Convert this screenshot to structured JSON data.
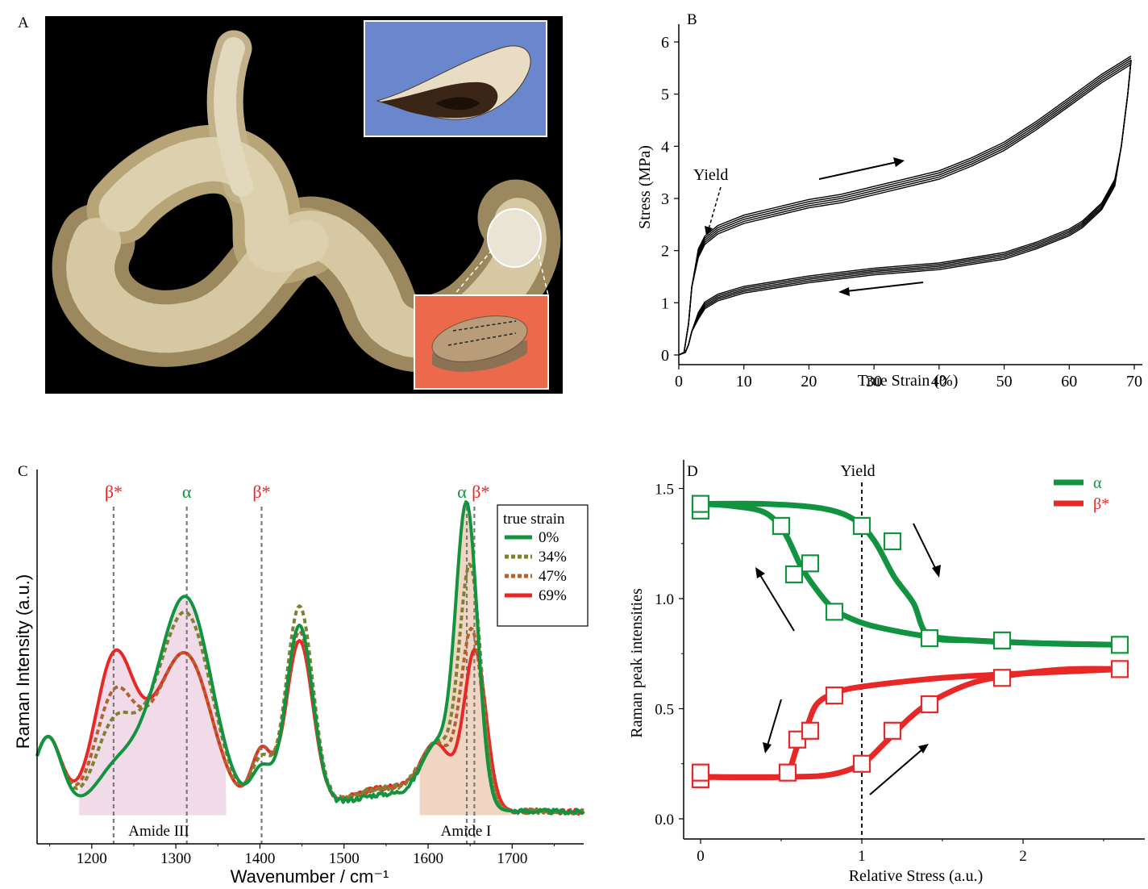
{
  "panels": {
    "A": {
      "label": "A"
    },
    "B": {
      "label": "B"
    },
    "C": {
      "label": "C"
    },
    "D": {
      "label": "D"
    }
  },
  "colors": {
    "alpha": "#11933f",
    "beta": "#e82727",
    "s34": "#7e8132",
    "s47": "#b0632d",
    "photo_bg": "#000000",
    "inset_blue": "#6a86cc",
    "inset_orange": "#ec6a4b"
  },
  "chart_data": [
    {
      "panel": "B",
      "type": "line",
      "xlabel": "True Strain (%)",
      "ylabel": "Stress (MPa)",
      "xlim": [
        0,
        70
      ],
      "ylim": [
        -0.2,
        6.5
      ],
      "xticks": [
        0,
        10,
        20,
        30,
        40,
        50,
        60,
        70
      ],
      "yticks": [
        0,
        1,
        2,
        3,
        4,
        5,
        6
      ],
      "annotations": {
        "yield": "Yield"
      },
      "series": [
        {
          "loading": [
            [
              0,
              0
            ],
            [
              0.8,
              0.05
            ],
            [
              1.5,
              0.6
            ],
            [
              2,
              1.3
            ],
            [
              3,
              1.95
            ],
            [
              4,
              2.2
            ],
            [
              6,
              2.4
            ],
            [
              10,
              2.6
            ],
            [
              15,
              2.75
            ],
            [
              20,
              2.9
            ],
            [
              25,
              3.0
            ],
            [
              30,
              3.15
            ],
            [
              35,
              3.3
            ],
            [
              40,
              3.45
            ],
            [
              45,
              3.7
            ],
            [
              50,
              4.0
            ],
            [
              55,
              4.4
            ],
            [
              60,
              4.85
            ],
            [
              65,
              5.3
            ],
            [
              69.5,
              5.65
            ]
          ],
          "unloading": [
            [
              69.5,
              5.65
            ],
            [
              69,
              5.0
            ],
            [
              68,
              4.0
            ],
            [
              67,
              3.3
            ],
            [
              65,
              2.85
            ],
            [
              62,
              2.5
            ],
            [
              60,
              2.35
            ],
            [
              55,
              2.1
            ],
            [
              50,
              1.9
            ],
            [
              45,
              1.8
            ],
            [
              40,
              1.7
            ],
            [
              30,
              1.6
            ],
            [
              20,
              1.45
            ],
            [
              15,
              1.35
            ],
            [
              10,
              1.25
            ],
            [
              6,
              1.1
            ],
            [
              4,
              0.95
            ],
            [
              3,
              0.75
            ],
            [
              2,
              0.45
            ],
            [
              1.5,
              0.2
            ],
            [
              1,
              0.05
            ],
            [
              0,
              0
            ]
          ]
        }
      ]
    },
    {
      "panel": "C",
      "type": "line",
      "xlabel": "Wavenumber / cm⁻¹",
      "ylabel": "Raman Intensity (a.u.)",
      "xlim": [
        1135,
        1785
      ],
      "xticks": [
        1200,
        1300,
        1400,
        1500,
        1600,
        1700
      ],
      "bands": [
        {
          "label": "Amide III",
          "range": [
            1185,
            1360
          ]
        },
        {
          "label": "Amide I",
          "range": [
            1590,
            1700
          ]
        }
      ],
      "peak_markers": [
        {
          "label": "β*",
          "x": 1226
        },
        {
          "label": "α",
          "x": 1313
        },
        {
          "label": "β*",
          "x": 1402
        },
        {
          "label": "α",
          "x": 1646
        },
        {
          "label": "β*",
          "x": 1655
        }
      ],
      "legend": {
        "title": "true strain",
        "entries": [
          "0%",
          "34%",
          "47%",
          "69%"
        ]
      },
      "series": [
        {
          "name": "0%",
          "peaks": [
            [
              1148,
              0.22
            ],
            [
              1226,
              0.1
            ],
            [
              1313,
              0.65
            ],
            [
              1402,
              0.12
            ],
            [
              1447,
              0.58
            ],
            [
              1646,
              0.95
            ],
            [
              1555,
              0.05
            ]
          ]
        },
        {
          "name": "34%",
          "peaks": [
            [
              1148,
              0.22
            ],
            [
              1226,
              0.24
            ],
            [
              1313,
              0.6
            ],
            [
              1402,
              0.15
            ],
            [
              1447,
              0.64
            ],
            [
              1650,
              0.76
            ],
            [
              1555,
              0.07
            ]
          ]
        },
        {
          "name": "47%",
          "peaks": [
            [
              1148,
              0.22
            ],
            [
              1226,
              0.33
            ],
            [
              1313,
              0.47
            ],
            [
              1402,
              0.18
            ],
            [
              1447,
              0.56
            ],
            [
              1652,
              0.56
            ],
            [
              1555,
              0.07
            ]
          ]
        },
        {
          "name": "69%",
          "peaks": [
            [
              1148,
              0.22
            ],
            [
              1226,
              0.45
            ],
            [
              1313,
              0.47
            ],
            [
              1402,
              0.18
            ],
            [
              1447,
              0.53
            ],
            [
              1656,
              0.5
            ],
            [
              1555,
              0.07
            ]
          ]
        }
      ]
    },
    {
      "panel": "D",
      "type": "scatter",
      "xlabel": "Relative Stress (a.u.)",
      "ylabel": "Raman peak intensities",
      "xlim": [
        -0.1,
        2.75
      ],
      "ylim": [
        -0.12,
        1.6
      ],
      "xticks": [
        0,
        1,
        2
      ],
      "yticks": [
        "0.0",
        "0.5",
        "1.0",
        "1.5"
      ],
      "annotations": {
        "yield": "Yield",
        "yield_x": 1.0
      },
      "legend": [
        "α",
        "β*"
      ],
      "series": [
        {
          "name": "α",
          "points": [
            [
              0,
              1.4
            ],
            [
              0,
              1.43
            ],
            [
              0.5,
              1.33
            ],
            [
              0.58,
              1.11
            ],
            [
              0.68,
              1.16
            ],
            [
              0.83,
              0.94
            ],
            [
              1.0,
              1.33
            ],
            [
              1.19,
              1.26
            ],
            [
              1.42,
              0.82
            ],
            [
              1.87,
              0.81
            ],
            [
              2.6,
              0.79
            ]
          ],
          "loading_curve": [
            [
              0,
              1.43
            ],
            [
              0.4,
              1.43
            ],
            [
              0.75,
              1.41
            ],
            [
              0.95,
              1.36
            ],
            [
              1.08,
              1.26
            ],
            [
              1.2,
              1.1
            ],
            [
              1.32,
              0.98
            ],
            [
              1.42,
              0.83
            ],
            [
              1.7,
              0.81
            ],
            [
              2.2,
              0.795
            ],
            [
              2.62,
              0.79
            ]
          ],
          "unloading_curve": [
            [
              2.62,
              0.79
            ],
            [
              2.0,
              0.8
            ],
            [
              1.5,
              0.82
            ],
            [
              1.1,
              0.87
            ],
            [
              0.9,
              0.92
            ],
            [
              0.8,
              0.97
            ],
            [
              0.7,
              1.06
            ],
            [
              0.62,
              1.15
            ],
            [
              0.52,
              1.3
            ],
            [
              0.4,
              1.39
            ],
            [
              0.2,
              1.42
            ],
            [
              0,
              1.43
            ]
          ]
        },
        {
          "name": "β*",
          "points": [
            [
              0,
              0.18
            ],
            [
              0,
              0.21
            ],
            [
              0.54,
              0.21
            ],
            [
              0.6,
              0.36
            ],
            [
              0.68,
              0.4
            ],
            [
              0.83,
              0.56
            ],
            [
              1.0,
              0.25
            ],
            [
              1.19,
              0.4
            ],
            [
              1.42,
              0.52
            ],
            [
              1.87,
              0.64
            ],
            [
              2.6,
              0.68
            ]
          ],
          "loading_curve": [
            [
              0,
              0.19
            ],
            [
              0.5,
              0.19
            ],
            [
              0.8,
              0.2
            ],
            [
              1.0,
              0.25
            ],
            [
              1.15,
              0.35
            ],
            [
              1.3,
              0.46
            ],
            [
              1.45,
              0.54
            ],
            [
              1.7,
              0.62
            ],
            [
              2.0,
              0.66
            ],
            [
              2.3,
              0.68
            ],
            [
              2.62,
              0.68
            ]
          ],
          "unloading_curve": [
            [
              2.62,
              0.68
            ],
            [
              2.0,
              0.66
            ],
            [
              1.5,
              0.64
            ],
            [
              1.0,
              0.6
            ],
            [
              0.83,
              0.57
            ],
            [
              0.72,
              0.52
            ],
            [
              0.66,
              0.42
            ],
            [
              0.6,
              0.33
            ],
            [
              0.55,
              0.22
            ],
            [
              0.5,
              0.19
            ],
            [
              0,
              0.19
            ]
          ]
        }
      ]
    }
  ],
  "panel_c_labels": {
    "amide3": "Amide III",
    "amide1": "Amide I"
  }
}
